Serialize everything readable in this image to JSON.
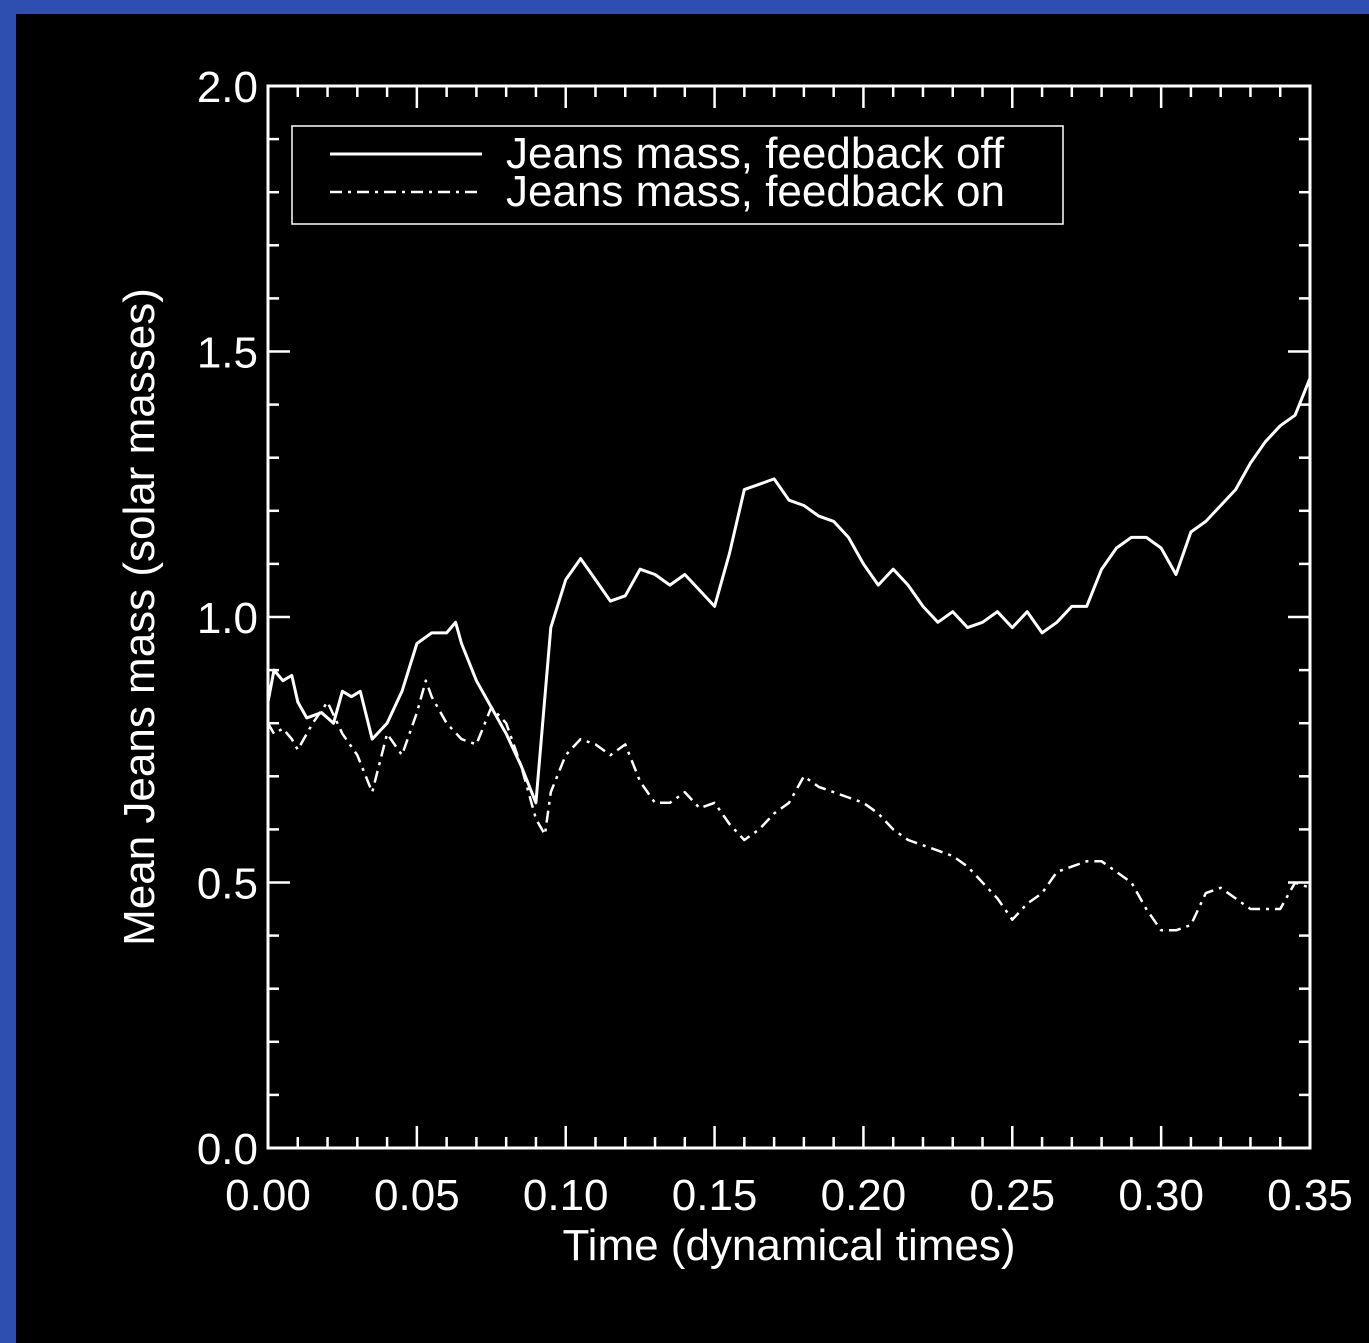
{
  "colors": {
    "slide_background": "#2f4fb0",
    "plot_background": "#000000",
    "foreground": "#ffffff"
  },
  "chart_data": {
    "type": "line",
    "xlabel": "Time (dynamical times)",
    "ylabel": "Mean Jeans mass (solar masses)",
    "xlim": [
      0.0,
      0.35
    ],
    "ylim": [
      0.0,
      2.0
    ],
    "xticks": [
      "0.00",
      "0.05",
      "0.10",
      "0.15",
      "0.20",
      "0.25",
      "0.30",
      "0.35"
    ],
    "yticks": [
      "0.0",
      "0.5",
      "1.0",
      "1.5",
      "2.0"
    ],
    "legend_position": "top-left",
    "grid": false,
    "series": [
      {
        "name": "Jeans mass, feedback off",
        "line_style": "solid",
        "x": [
          0.0,
          0.002,
          0.005,
          0.008,
          0.01,
          0.013,
          0.018,
          0.022,
          0.025,
          0.028,
          0.031,
          0.035,
          0.04,
          0.045,
          0.05,
          0.055,
          0.06,
          0.063,
          0.065,
          0.07,
          0.075,
          0.08,
          0.085,
          0.09,
          0.095,
          0.1,
          0.105,
          0.11,
          0.115,
          0.12,
          0.125,
          0.13,
          0.135,
          0.14,
          0.145,
          0.15,
          0.155,
          0.16,
          0.165,
          0.17,
          0.175,
          0.18,
          0.185,
          0.19,
          0.195,
          0.2,
          0.205,
          0.21,
          0.215,
          0.22,
          0.225,
          0.23,
          0.235,
          0.24,
          0.245,
          0.25,
          0.255,
          0.26,
          0.265,
          0.27,
          0.275,
          0.28,
          0.285,
          0.29,
          0.295,
          0.3,
          0.305,
          0.31,
          0.315,
          0.32,
          0.325,
          0.33,
          0.335,
          0.34,
          0.345,
          0.35
        ],
        "y": [
          0.84,
          0.9,
          0.88,
          0.89,
          0.84,
          0.81,
          0.82,
          0.8,
          0.86,
          0.85,
          0.86,
          0.77,
          0.8,
          0.86,
          0.95,
          0.97,
          0.97,
          0.99,
          0.95,
          0.88,
          0.83,
          0.78,
          0.72,
          0.65,
          0.98,
          1.07,
          1.11,
          1.07,
          1.03,
          1.04,
          1.09,
          1.08,
          1.06,
          1.08,
          1.05,
          1.02,
          1.12,
          1.24,
          1.25,
          1.26,
          1.22,
          1.21,
          1.19,
          1.18,
          1.15,
          1.1,
          1.06,
          1.09,
          1.06,
          1.02,
          0.99,
          1.01,
          0.98,
          0.99,
          1.01,
          0.98,
          1.01,
          0.97,
          0.99,
          1.02,
          1.02,
          1.09,
          1.13,
          1.15,
          1.15,
          1.13,
          1.08,
          1.16,
          1.18,
          1.21,
          1.24,
          1.29,
          1.33,
          1.36,
          1.38,
          1.45
        ]
      },
      {
        "name": "Jeans mass, feedback on",
        "line_style": "dash-dot",
        "x": [
          0.0,
          0.002,
          0.005,
          0.008,
          0.01,
          0.015,
          0.02,
          0.025,
          0.03,
          0.035,
          0.04,
          0.045,
          0.05,
          0.053,
          0.055,
          0.06,
          0.065,
          0.07,
          0.075,
          0.08,
          0.085,
          0.09,
          0.093,
          0.095,
          0.1,
          0.105,
          0.11,
          0.115,
          0.12,
          0.125,
          0.13,
          0.135,
          0.14,
          0.145,
          0.15,
          0.155,
          0.16,
          0.165,
          0.17,
          0.175,
          0.18,
          0.185,
          0.19,
          0.195,
          0.2,
          0.205,
          0.21,
          0.215,
          0.22,
          0.225,
          0.23,
          0.235,
          0.24,
          0.245,
          0.25,
          0.255,
          0.26,
          0.265,
          0.27,
          0.275,
          0.28,
          0.285,
          0.29,
          0.295,
          0.3,
          0.305,
          0.31,
          0.315,
          0.32,
          0.325,
          0.33,
          0.335,
          0.34,
          0.345,
          0.35
        ],
        "y": [
          0.8,
          0.78,
          0.79,
          0.77,
          0.75,
          0.8,
          0.84,
          0.78,
          0.74,
          0.67,
          0.78,
          0.74,
          0.82,
          0.88,
          0.85,
          0.8,
          0.77,
          0.76,
          0.83,
          0.8,
          0.72,
          0.62,
          0.59,
          0.67,
          0.74,
          0.77,
          0.76,
          0.74,
          0.76,
          0.69,
          0.65,
          0.65,
          0.67,
          0.64,
          0.65,
          0.61,
          0.58,
          0.6,
          0.63,
          0.65,
          0.7,
          0.68,
          0.67,
          0.66,
          0.65,
          0.63,
          0.6,
          0.58,
          0.57,
          0.56,
          0.55,
          0.53,
          0.5,
          0.47,
          0.43,
          0.46,
          0.48,
          0.52,
          0.53,
          0.54,
          0.54,
          0.52,
          0.5,
          0.45,
          0.41,
          0.41,
          0.42,
          0.48,
          0.49,
          0.47,
          0.45,
          0.45,
          0.45,
          0.5,
          0.49
        ]
      }
    ]
  }
}
